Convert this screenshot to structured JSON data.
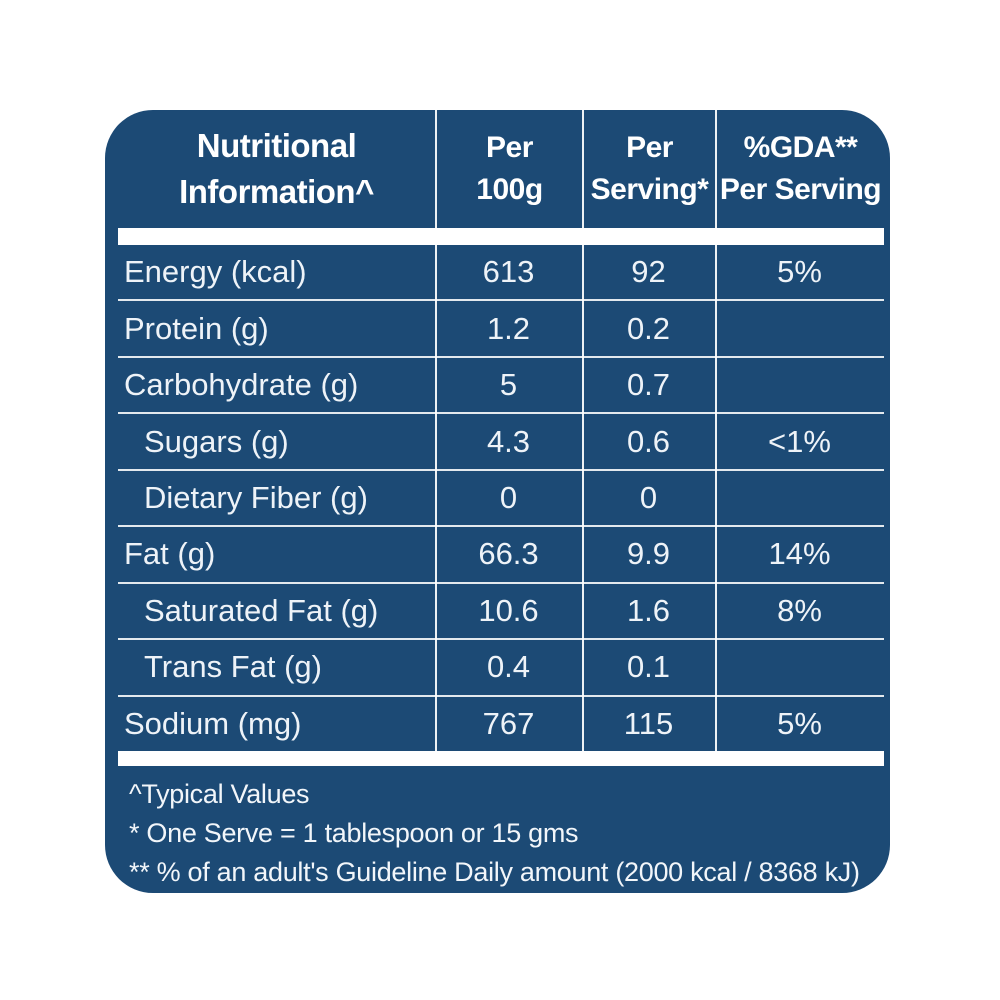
{
  "colors": {
    "panel_background": "#1C4A75",
    "header_text": "#FFFFFF",
    "body_text": "#EEF3F8",
    "divider_lines": "#FFFFFF",
    "separator_bars": "#FFFFFF",
    "page_background": "#FFFFFF"
  },
  "table": {
    "header": {
      "col1": "Nutritional\nInformation^",
      "col2": "Per\n100g",
      "col3": "Per\nServing*",
      "col4": "%GDA**\nPer Serving"
    },
    "rows": [
      {
        "label": "Energy (kcal)",
        "per_100g": "613",
        "per_serving": "92",
        "gda_per_serving": "5%"
      },
      {
        "label": "Protein (g)",
        "per_100g": "1.2",
        "per_serving": "0.2",
        "gda_per_serving": ""
      },
      {
        "label": "Carbohydrate (g)",
        "per_100g": "5",
        "per_serving": "0.7",
        "gda_per_serving": ""
      },
      {
        "label": "Sugars (g)",
        "per_100g": "4.3",
        "per_serving": "0.6",
        "gda_per_serving": "<1%"
      },
      {
        "label": "Dietary Fiber (g)",
        "per_100g": "0",
        "per_serving": "0",
        "gda_per_serving": ""
      },
      {
        "label": "Fat (g)",
        "per_100g": "66.3",
        "per_serving": "9.9",
        "gda_per_serving": "14%"
      },
      {
        "label": "Saturated Fat (g)",
        "per_100g": "10.6",
        "per_serving": "1.6",
        "gda_per_serving": "8%"
      },
      {
        "label": "Trans Fat (g)",
        "per_100g": "0.4",
        "per_serving": "0.1",
        "gda_per_serving": ""
      },
      {
        "label": "Sodium (mg)",
        "per_100g": "767",
        "per_serving": "115",
        "gda_per_serving": "5%"
      }
    ]
  },
  "footnotes": [
    "^Typical Values",
    "* One Serve = 1 tablespoon or 15 gms",
    "** % of an adult's Guideline Daily amount (2000 kcal / 8368 kJ)"
  ]
}
